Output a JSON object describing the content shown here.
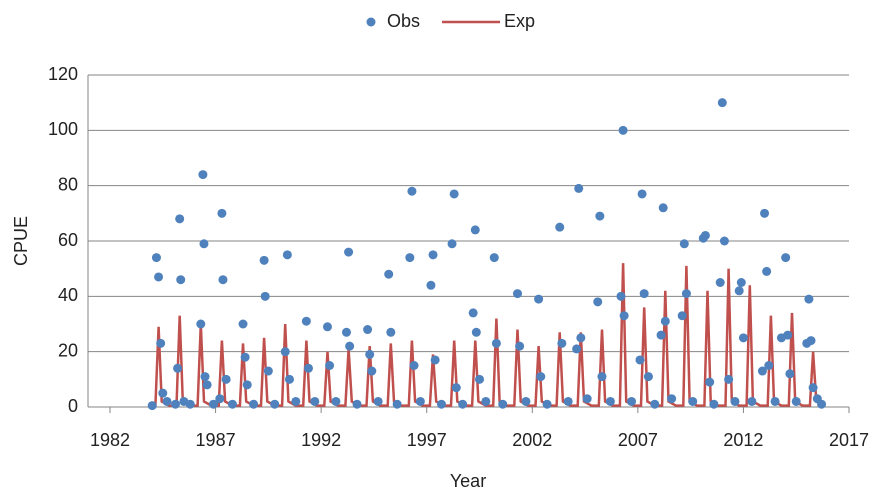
{
  "chart_data": {
    "type": "combo",
    "x_label": "Year",
    "y_label": "CPUE",
    "xlim": [
      1982,
      2017
    ],
    "xticks": [
      1982,
      1987,
      1992,
      1997,
      2002,
      2007,
      2012,
      2017
    ],
    "ylim": [
      0,
      120
    ],
    "yticks": [
      0,
      20,
      40,
      60,
      80,
      100,
      120
    ],
    "grid": true,
    "legend": "top",
    "series": [
      {
        "name": "Obs",
        "type": "scatter",
        "color": "#4f81bd",
        "x": [
          1984.0,
          1984.2,
          1984.3,
          1984.4,
          1984.5,
          1984.7,
          1985.1,
          1985.2,
          1985.3,
          1985.35,
          1985.5,
          1985.8,
          1986.3,
          1986.4,
          1986.45,
          1986.5,
          1986.6,
          1986.9,
          1987.2,
          1987.3,
          1987.35,
          1987.5,
          1987.8,
          1988.3,
          1988.4,
          1988.5,
          1988.8,
          1989.3,
          1989.35,
          1989.5,
          1989.8,
          1990.3,
          1990.4,
          1990.5,
          1990.8,
          1991.3,
          1991.4,
          1991.7,
          1992.3,
          1992.4,
          1992.7,
          1993.2,
          1993.3,
          1993.35,
          1993.7,
          1994.2,
          1994.3,
          1994.4,
          1994.7,
          1995.2,
          1995.3,
          1995.6,
          1996.2,
          1996.3,
          1996.4,
          1996.7,
          1997.2,
          1997.3,
          1997.4,
          1997.7,
          1998.2,
          1998.3,
          1998.4,
          1998.7,
          1999.2,
          1999.3,
          1999.35,
          1999.5,
          1999.8,
          2000.2,
          2000.3,
          2000.6,
          2001.3,
          2001.4,
          2001.7,
          2002.3,
          2002.4,
          2002.7,
          2003.3,
          2003.4,
          2003.7,
          2004.1,
          2004.2,
          2004.3,
          2004.6,
          2005.1,
          2005.2,
          2005.3,
          2005.7,
          2006.2,
          2006.3,
          2006.35,
          2006.7,
          2007.1,
          2007.2,
          2007.3,
          2007.5,
          2007.8,
          2008.1,
          2008.2,
          2008.3,
          2008.6,
          2009.1,
          2009.2,
          2009.3,
          2009.6,
          2010.1,
          2010.2,
          2010.4,
          2010.6,
          2010.9,
          2011.0,
          2011.1,
          2011.3,
          2011.6,
          2011.8,
          2011.9,
          2012.0,
          2012.4,
          2012.9,
          2013.0,
          2013.1,
          2013.2,
          2013.5,
          2013.8,
          2014.0,
          2014.1,
          2014.2,
          2014.5,
          2015.0,
          2015.1,
          2015.2,
          2015.3,
          2015.5,
          2015.7
        ],
        "values": [
          0.5,
          54,
          47,
          23,
          5,
          2,
          1,
          14,
          68,
          46,
          2,
          1,
          30,
          84,
          59,
          11,
          8,
          1,
          3,
          70,
          46,
          10,
          1,
          30,
          18,
          8,
          1,
          53,
          40,
          13,
          1,
          20,
          55,
          10,
          2,
          31,
          14,
          2,
          29,
          15,
          2,
          27,
          56,
          22,
          1,
          28,
          19,
          13,
          2,
          48,
          27,
          1,
          54,
          78,
          15,
          2,
          44,
          55,
          17,
          1,
          59,
          77,
          7,
          1,
          34,
          64,
          27,
          10,
          2,
          54,
          23,
          1,
          41,
          22,
          2,
          39,
          11,
          1,
          65,
          23,
          2,
          21,
          79,
          25,
          3,
          38,
          69,
          11,
          2,
          40,
          100,
          33,
          2,
          17,
          77,
          41,
          11,
          1,
          26,
          72,
          31,
          3,
          33,
          59,
          41,
          2,
          61,
          62,
          9,
          1,
          45,
          110,
          60,
          10,
          2,
          42,
          45,
          25,
          2,
          13,
          70,
          49,
          15,
          2,
          25,
          54,
          26,
          12,
          2,
          23,
          39,
          24,
          7,
          3,
          1
        ]
      },
      {
        "name": "Exp",
        "type": "line",
        "color": "#c0504d",
        "x": [
          1984.15,
          1984.3,
          1984.45,
          1984.8,
          1985.15,
          1985.3,
          1985.45,
          1985.8,
          1986.15,
          1986.3,
          1986.45,
          1986.8,
          1987.15,
          1987.3,
          1987.45,
          1987.8,
          1988.15,
          1988.3,
          1988.45,
          1988.8,
          1989.15,
          1989.3,
          1989.45,
          1989.8,
          1990.15,
          1990.3,
          1990.45,
          1990.8,
          1991.15,
          1991.3,
          1991.45,
          1991.8,
          1992.15,
          1992.3,
          1992.45,
          1992.8,
          1993.15,
          1993.3,
          1993.45,
          1993.8,
          1994.15,
          1994.3,
          1994.45,
          1994.8,
          1995.15,
          1995.3,
          1995.45,
          1995.8,
          1996.15,
          1996.3,
          1996.45,
          1996.8,
          1997.15,
          1997.3,
          1997.45,
          1997.8,
          1998.15,
          1998.3,
          1998.45,
          1998.8,
          1999.15,
          1999.3,
          1999.45,
          1999.8,
          2000.15,
          2000.3,
          2000.45,
          2000.8,
          2001.15,
          2001.3,
          2001.45,
          2001.8,
          2002.15,
          2002.3,
          2002.45,
          2002.8,
          2003.15,
          2003.3,
          2003.45,
          2003.8,
          2004.15,
          2004.3,
          2004.45,
          2004.8,
          2005.15,
          2005.3,
          2005.45,
          2005.8,
          2006.15,
          2006.3,
          2006.45,
          2006.8,
          2007.15,
          2007.3,
          2007.45,
          2007.8,
          2008.15,
          2008.3,
          2008.45,
          2008.8,
          2009.15,
          2009.3,
          2009.45,
          2009.8,
          2010.15,
          2010.3,
          2010.45,
          2010.8,
          2011.15,
          2011.3,
          2011.45,
          2011.8,
          2012.15,
          2012.3,
          2012.45,
          2012.8,
          2013.15,
          2013.3,
          2013.45,
          2013.8,
          2014.15,
          2014.3,
          2014.45,
          2014.8,
          2015.15,
          2015.3,
          2015.45,
          2015.8
        ],
        "values": [
          0.5,
          29,
          2,
          0.5,
          0.5,
          33,
          2,
          0.5,
          0.5,
          30,
          2,
          0.5,
          0.5,
          24,
          2,
          0.5,
          0.5,
          23,
          2,
          0.5,
          0.5,
          25,
          2,
          0.5,
          0.5,
          30,
          2,
          0.5,
          0.5,
          24,
          2,
          0.5,
          0.5,
          20,
          2,
          0.5,
          0.5,
          21,
          2,
          0.5,
          0.5,
          22,
          2,
          0.5,
          0.5,
          23,
          2,
          0.5,
          0.5,
          24,
          2,
          0.5,
          0.5,
          19,
          2,
          0.5,
          0.5,
          24,
          2,
          0.5,
          0.5,
          24,
          2,
          0.5,
          0.5,
          32,
          2,
          0.5,
          0.5,
          28,
          2,
          0.5,
          0.5,
          22,
          2,
          0.5,
          0.5,
          27,
          2,
          0.5,
          0.5,
          27,
          2,
          0.5,
          0.5,
          28,
          2,
          0.5,
          0.5,
          52,
          2,
          0.5,
          0.5,
          36,
          2,
          0.5,
          0.5,
          42,
          2,
          0.5,
          0.5,
          51,
          2,
          0.5,
          0.5,
          42,
          2,
          0.5,
          0.5,
          50,
          2,
          0.5,
          0.5,
          44,
          2,
          0.5,
          0.5,
          33,
          2,
          0.5,
          0.5,
          34,
          2,
          0.5,
          0.5,
          20,
          2,
          0.5
        ]
      }
    ]
  }
}
